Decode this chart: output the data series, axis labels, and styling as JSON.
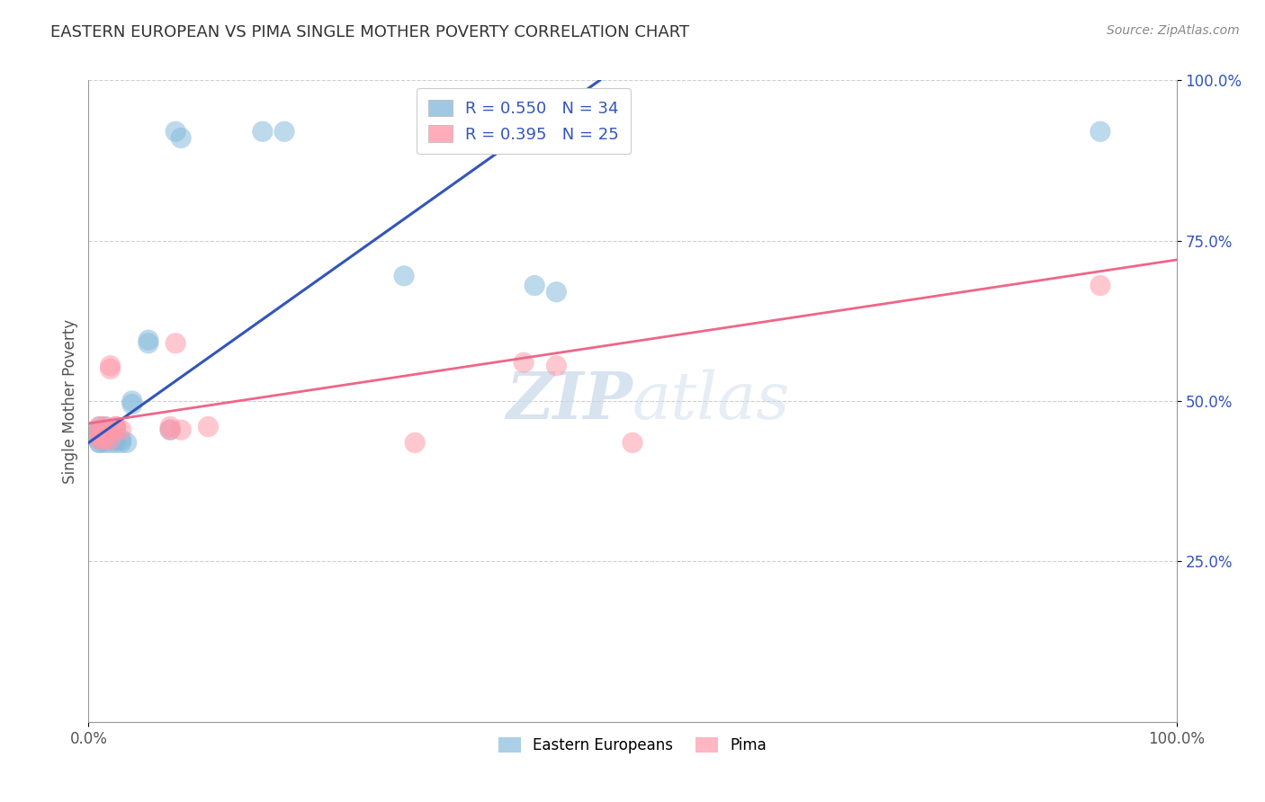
{
  "title": "EASTERN EUROPEAN VS PIMA SINGLE MOTHER POVERTY CORRELATION CHART",
  "source_text": "Source: ZipAtlas.com",
  "ylabel": "Single Mother Poverty",
  "xlim": [
    0.0,
    1.0
  ],
  "ylim": [
    0.0,
    1.0
  ],
  "xtick_positions": [
    0.0,
    1.0
  ],
  "xtick_labels": [
    "0.0%",
    "100.0%"
  ],
  "ytick_positions": [
    0.25,
    0.5,
    0.75,
    1.0
  ],
  "ytick_labels": [
    "25.0%",
    "50.0%",
    "75.0%",
    "100.0%"
  ],
  "grid_color": "#d0d0d0",
  "background_color": "#ffffff",
  "legend_labels": [
    "Eastern Europeans",
    "Pima"
  ],
  "legend_R_blue": "R = 0.550   N = 34",
  "legend_R_pink": "R = 0.395   N = 25",
  "blue_color": "#88bbdd",
  "pink_color": "#ff99aa",
  "blue_line_color": "#3355bb",
  "pink_line_color": "#ee6688",
  "tick_color": "#3355bb",
  "title_color": "#333333",
  "watermark_color": "#c8d8ea",
  "blue_points": [
    [
      0.01,
      0.435
    ],
    [
      0.01,
      0.435
    ],
    [
      0.01,
      0.44
    ],
    [
      0.01,
      0.445
    ],
    [
      0.01,
      0.45
    ],
    [
      0.01,
      0.455
    ],
    [
      0.01,
      0.455
    ],
    [
      0.01,
      0.46
    ],
    [
      0.015,
      0.435
    ],
    [
      0.015,
      0.44
    ],
    [
      0.015,
      0.445
    ],
    [
      0.015,
      0.45
    ],
    [
      0.015,
      0.455
    ],
    [
      0.015,
      0.46
    ],
    [
      0.02,
      0.435
    ],
    [
      0.02,
      0.44
    ],
    [
      0.025,
      0.435
    ],
    [
      0.025,
      0.44
    ],
    [
      0.03,
      0.435
    ],
    [
      0.03,
      0.44
    ],
    [
      0.035,
      0.435
    ],
    [
      0.04,
      0.495
    ],
    [
      0.04,
      0.5
    ],
    [
      0.055,
      0.59
    ],
    [
      0.055,
      0.595
    ],
    [
      0.075,
      0.455
    ],
    [
      0.08,
      0.92
    ],
    [
      0.085,
      0.91
    ],
    [
      0.16,
      0.92
    ],
    [
      0.18,
      0.92
    ],
    [
      0.29,
      0.695
    ],
    [
      0.41,
      0.68
    ],
    [
      0.43,
      0.67
    ],
    [
      0.93,
      0.92
    ]
  ],
  "pink_points": [
    [
      0.01,
      0.44
    ],
    [
      0.01,
      0.445
    ],
    [
      0.01,
      0.455
    ],
    [
      0.01,
      0.46
    ],
    [
      0.015,
      0.44
    ],
    [
      0.015,
      0.445
    ],
    [
      0.015,
      0.455
    ],
    [
      0.015,
      0.46
    ],
    [
      0.02,
      0.44
    ],
    [
      0.02,
      0.55
    ],
    [
      0.02,
      0.555
    ],
    [
      0.025,
      0.455
    ],
    [
      0.025,
      0.46
    ],
    [
      0.025,
      0.46
    ],
    [
      0.03,
      0.455
    ],
    [
      0.075,
      0.455
    ],
    [
      0.075,
      0.46
    ],
    [
      0.08,
      0.59
    ],
    [
      0.085,
      0.455
    ],
    [
      0.11,
      0.46
    ],
    [
      0.3,
      0.435
    ],
    [
      0.5,
      0.435
    ],
    [
      0.4,
      0.56
    ],
    [
      0.43,
      0.555
    ],
    [
      0.93,
      0.68
    ]
  ],
  "blue_trendline_x": [
    0.0,
    0.47
  ],
  "blue_trendline_y": [
    0.435,
    1.0
  ],
  "pink_trendline_x": [
    0.0,
    1.0
  ],
  "pink_trendline_y": [
    0.465,
    0.72
  ]
}
